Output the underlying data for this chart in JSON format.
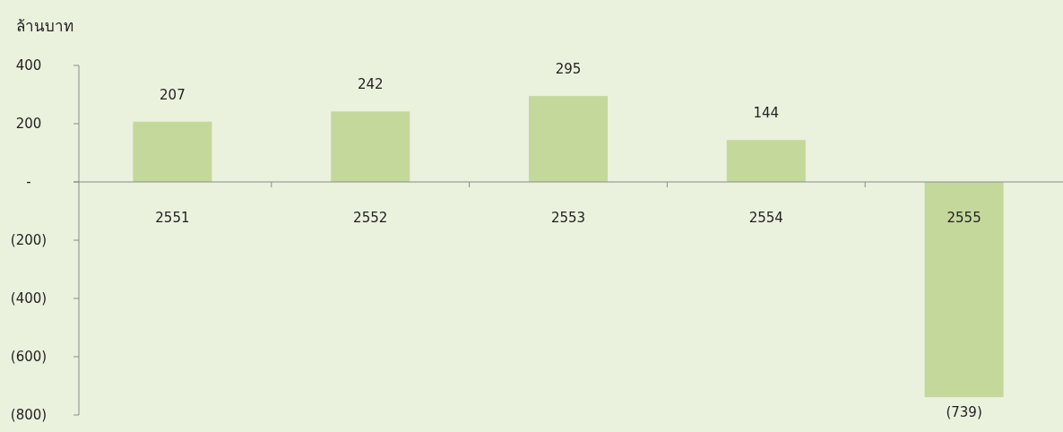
{
  "chart_data": {
    "type": "bar",
    "ylabel": "ล้านบาท",
    "categories": [
      "2551",
      "2552",
      "2553",
      "2554",
      "2555"
    ],
    "values": [
      207,
      242,
      295,
      144,
      -739
    ],
    "value_labels": [
      "207",
      "242",
      "295",
      "144",
      "(739)"
    ],
    "color": "#c5d89b",
    "ylim": [
      -800,
      400
    ],
    "yticks": [
      400,
      200,
      {
        "value": 0,
        "label": "-"
      },
      {
        "value": -200,
        "label": "(200)"
      },
      {
        "value": -400,
        "label": "(400)"
      },
      {
        "value": -600,
        "label": "(600)"
      },
      {
        "value": -800,
        "label": "(800)"
      }
    ],
    "grid": false
  }
}
